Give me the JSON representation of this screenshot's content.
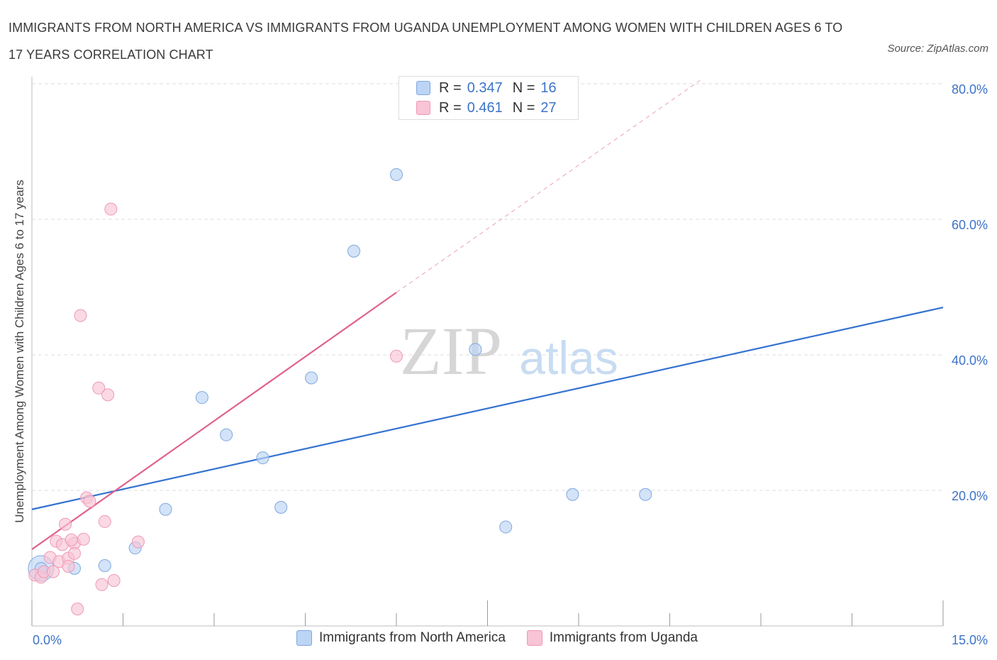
{
  "title": "IMMIGRANTS FROM NORTH AMERICA VS IMMIGRANTS FROM UGANDA UNEMPLOYMENT AMONG WOMEN WITH CHILDREN AGES 6 TO 17 YEARS CORRELATION CHART",
  "source": "Source: ZipAtlas.com",
  "watermark": {
    "zip": "ZIP",
    "atlas": "atlas"
  },
  "legend": {
    "r_label": "R =",
    "n_label": "N =",
    "series": [
      {
        "r": "0.347",
        "n": "16"
      },
      {
        "r": "0.461",
        "n": "27"
      }
    ]
  },
  "bottom_legend": [
    "Immigrants from North America",
    "Immigrants from Uganda"
  ],
  "colors": {
    "blue_fill": "#bcd4f5",
    "blue_stroke": "#7fa8e0",
    "blue_line": "#3472d0",
    "pink_fill": "#f8c4d6",
    "pink_stroke": "#ee99b6",
    "pink_line": "#e0628c",
    "grid": "#dddddd",
    "axis_text": "#3d73c8"
  },
  "chart_data": {
    "type": "scatter",
    "title": "IMMIGRANTS FROM NORTH AMERICA VS IMMIGRANTS FROM UGANDA UNEMPLOYMENT AMONG WOMEN WITH CHILDREN AGES 6 TO 17 YEARS CORRELATION CHART",
    "xlabel": "",
    "ylabel": "Unemployment Among Women with Children Ages 6 to 17 years",
    "xlim": [
      0,
      15
    ],
    "ylim": [
      0,
      80
    ],
    "x_tick_labels": [
      {
        "value": 0,
        "label": "0.0%"
      },
      {
        "value": 15,
        "label": "15.0%"
      }
    ],
    "y_tick_labels": [
      {
        "value": 20,
        "label": "20.0%"
      },
      {
        "value": 40,
        "label": "40.0%"
      },
      {
        "value": 60,
        "label": "60.0%"
      },
      {
        "value": 80,
        "label": "80.0%"
      }
    ],
    "series": [
      {
        "name": "Immigrants from North America",
        "color": "blue",
        "points": [
          [
            0.15,
            8.5
          ],
          [
            0.7,
            8.5
          ],
          [
            1.2,
            8.9
          ],
          [
            1.7,
            11.5
          ],
          [
            2.2,
            17.2
          ],
          [
            2.8,
            33.7
          ],
          [
            3.2,
            28.2
          ],
          [
            3.8,
            24.8
          ],
          [
            4.1,
            17.5
          ],
          [
            4.6,
            36.6
          ],
          [
            5.3,
            55.3
          ],
          [
            6.0,
            66.6
          ],
          [
            7.3,
            40.8
          ],
          [
            7.8,
            14.6
          ],
          [
            8.9,
            19.4
          ],
          [
            10.1,
            19.4
          ]
        ],
        "trend": {
          "x": [
            0,
            15
          ],
          "y": [
            17.2,
            47.0
          ],
          "style": "solid"
        }
      },
      {
        "name": "Immigrants from Uganda",
        "color": "pink",
        "points": [
          [
            0.05,
            7.5
          ],
          [
            0.15,
            7.2
          ],
          [
            0.2,
            8.0
          ],
          [
            0.3,
            10.1
          ],
          [
            0.35,
            8.0
          ],
          [
            0.4,
            12.5
          ],
          [
            0.45,
            9.5
          ],
          [
            0.5,
            12.0
          ],
          [
            0.6,
            10.0
          ],
          [
            0.7,
            12.2
          ],
          [
            0.55,
            15.0
          ],
          [
            0.6,
            8.8
          ],
          [
            0.65,
            12.7
          ],
          [
            0.7,
            10.7
          ],
          [
            0.75,
            2.5
          ],
          [
            0.8,
            45.8
          ],
          [
            0.85,
            12.8
          ],
          [
            0.9,
            18.9
          ],
          [
            0.95,
            18.4
          ],
          [
            1.1,
            35.1
          ],
          [
            1.15,
            6.1
          ],
          [
            1.2,
            15.4
          ],
          [
            1.25,
            34.1
          ],
          [
            1.3,
            61.5
          ],
          [
            1.35,
            6.7
          ],
          [
            1.75,
            12.4
          ],
          [
            6.0,
            39.8
          ]
        ],
        "trend": {
          "x": [
            0,
            6.0
          ],
          "y": [
            11.3,
            49.2
          ],
          "style": "solid",
          "extension": {
            "x": [
              6.0,
              11.0
            ],
            "y": [
              49.2,
              80.5
            ],
            "style": "dashed"
          }
        }
      }
    ]
  }
}
